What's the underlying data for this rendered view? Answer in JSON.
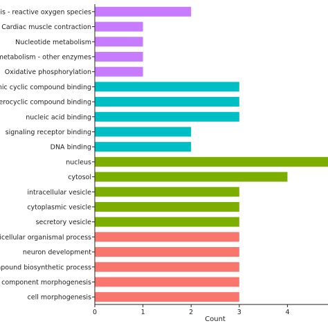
{
  "chart_data": {
    "type": "bar",
    "orientation": "horizontal",
    "xlabel": "Count",
    "ylabel": "",
    "xlim": [
      0,
      5
    ],
    "xticks": [
      "0",
      "1",
      "2",
      "3",
      "4"
    ],
    "grid": false,
    "legend": "none",
    "categories": [
      "enesis - reactive oxygen species",
      "Cardiac muscle contraction",
      "Nucleotide metabolism",
      "ug metabolism - other enzymes",
      "Oxidative phosphorylation",
      "ganic cyclic compound binding",
      "neterocyclic compound binding",
      "nucleic acid binding",
      "signaling receptor binding",
      "DNA binding",
      "nucleus",
      "cytosol",
      "intracellular vesicle",
      "cytoplasmic vesicle",
      "secretory vesicle",
      "multicellular organismal process",
      "neuron development",
      "compound biosynthetic process",
      "ular component morphogenesis",
      "cell morphogenesis"
    ],
    "values": [
      2,
      1,
      1,
      1,
      1,
      3,
      3,
      3,
      2,
      2,
      5,
      4,
      3,
      3,
      3,
      3,
      3,
      3,
      3,
      3
    ],
    "colors": [
      "#c77cff",
      "#c77cff",
      "#c77cff",
      "#c77cff",
      "#c77cff",
      "#00bfc4",
      "#00bfc4",
      "#00bfc4",
      "#00bfc4",
      "#00bfc4",
      "#7cae00",
      "#7cae00",
      "#7cae00",
      "#7cae00",
      "#7cae00",
      "#f8766d",
      "#f8766d",
      "#f8766d",
      "#f8766d",
      "#f8766d"
    ]
  }
}
